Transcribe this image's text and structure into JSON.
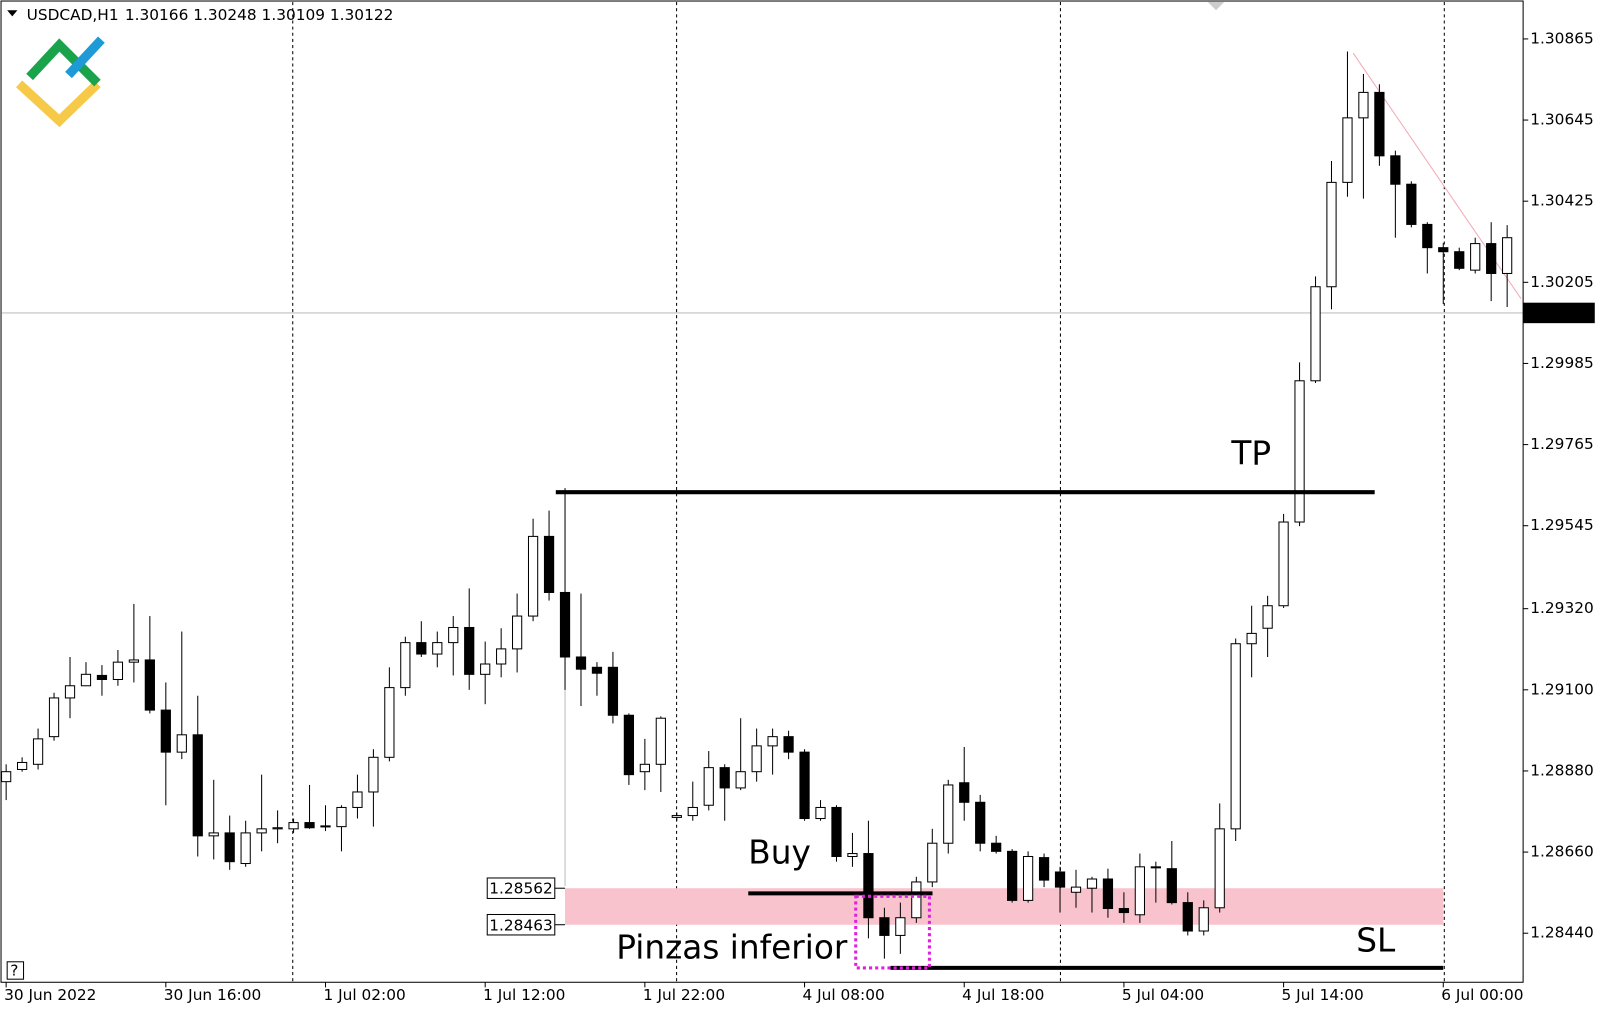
{
  "chart_data": {
    "type": "candlestick",
    "title": "USDCAD,H1",
    "quote": "1.30166 1.30248 1.30109 1.30122",
    "categories": [
      "30 Jun 2022",
      null,
      null,
      null,
      null,
      null,
      null,
      null,
      null,
      null,
      "30 Jun 16:00",
      null,
      null,
      null,
      null,
      null,
      null,
      null,
      null,
      null,
      "1 Jul 02:00",
      null,
      null,
      null,
      null,
      null,
      null,
      null,
      null,
      null,
      "1 Jul 12:00",
      null,
      null,
      null,
      null,
      null,
      null,
      null,
      null,
      null,
      "1 Jul 22:00",
      null,
      null,
      null,
      null,
      null,
      null,
      null,
      null,
      null,
      "4 Jul 08:00",
      null,
      null,
      null,
      null,
      null,
      null,
      null,
      null,
      null,
      "4 Jul 18:00",
      null,
      null,
      null,
      null,
      null,
      null,
      null,
      null,
      null,
      "5 Jul 04:00",
      null,
      null,
      null,
      null,
      null,
      null,
      null,
      null,
      null,
      "5 Jul 14:00",
      null,
      null,
      null,
      null,
      null,
      null,
      null,
      null,
      null,
      "6 Jul 00:00",
      null,
      null,
      null,
      null
    ],
    "open": [
      1.28851,
      1.28884,
      1.28898,
      1.28973,
      1.29078,
      1.29111,
      1.29139,
      1.29128,
      1.29175,
      1.29181,
      1.29045,
      1.28931,
      1.28978,
      1.28704,
      1.28712,
      1.28629,
      1.28712,
      1.28723,
      1.28723,
      1.2874,
      1.28729,
      1.28729,
      1.28781,
      1.28823,
      1.28917,
      1.29106,
      1.29228,
      1.29197,
      1.29228,
      1.29269,
      1.29142,
      1.2917,
      1.29211,
      1.293,
      1.29516,
      1.29364,
      1.29189,
      1.29161,
      1.29161,
      1.29031,
      1.28878,
      1.28898,
      1.28754,
      1.28759,
      1.28787,
      1.28889,
      1.28834,
      1.28878,
      1.28948,
      1.28973,
      1.28931,
      1.28751,
      1.28781,
      1.28648,
      1.28656,
      1.28482,
      1.28434,
      1.28482,
      1.28579,
      1.28684,
      1.28848,
      1.28795,
      1.28684,
      1.28662,
      1.28529,
      1.28645,
      1.28606,
      1.28551,
      1.28562,
      1.28587,
      1.28507,
      1.2849,
      1.2862,
      1.28615,
      1.28523,
      1.28446,
      1.28509,
      1.28723,
      1.29225,
      1.29267,
      1.29328,
      1.29555,
      1.29938,
      1.30193,
      1.30476,
      1.30651,
      1.3072,
      1.30548,
      1.30471,
      1.30362,
      1.30299,
      1.30288,
      1.30238,
      1.3031,
      1.30229
    ],
    "high": [
      1.28898,
      1.28917,
      1.28995,
      1.29092,
      1.29189,
      1.29175,
      1.29167,
      1.29208,
      1.29333,
      1.293,
      1.2912,
      1.29258,
      1.29084,
      1.28856,
      1.28759,
      1.28745,
      1.2887,
      1.28773,
      1.28751,
      1.28842,
      1.28787,
      1.28787,
      1.2887,
      1.28939,
      1.29161,
      1.29244,
      1.29286,
      1.29258,
      1.293,
      1.29375,
      1.29231,
      1.29267,
      1.29361,
      1.29564,
      1.29586,
      1.29647,
      1.29361,
      1.29175,
      1.29203,
      1.29036,
      1.28967,
      1.29028,
      1.28767,
      1.28851,
      1.28934,
      1.28898,
      1.29023,
      1.28995,
      1.28995,
      1.28989,
      1.28939,
      1.28801,
      1.28787,
      1.28712,
      1.28745,
      1.28509,
      1.28523,
      1.28593,
      1.28723,
      1.28856,
      1.28945,
      1.28815,
      1.28704,
      1.28668,
      1.28662,
      1.28656,
      1.2862,
      1.28612,
      1.28593,
      1.28615,
      1.28551,
      1.28656,
      1.28634,
      1.2869,
      1.28551,
      1.28529,
      1.28792,
      1.29239,
      1.29328,
      1.29355,
      1.29577,
      1.29988,
      1.30221,
      1.30534,
      1.30831,
      1.3077,
      1.30742,
      1.30562,
      1.30479,
      1.30368,
      1.30312,
      1.30299,
      1.30326,
      1.30368,
      1.3036
    ],
    "low": [
      1.28801,
      1.28878,
      1.28884,
      1.28962,
      1.29023,
      1.29111,
      1.29084,
      1.29111,
      1.2912,
      1.29036,
      1.28787,
      1.28912,
      1.28648,
      1.2864,
      1.28612,
      1.2862,
      1.28662,
      1.28684,
      1.28712,
      1.28723,
      1.28717,
      1.28662,
      1.28751,
      1.28729,
      1.28906,
      1.29084,
      1.29189,
      1.29161,
      1.29139,
      1.291,
      1.29061,
      1.29134,
      1.29147,
      1.29286,
      1.29342,
      1.291,
      1.29056,
      1.29084,
      1.29009,
      1.28842,
      1.28828,
      1.28823,
      1.28745,
      1.28745,
      1.28773,
      1.28745,
      1.28828,
      1.28851,
      1.2887,
      1.28912,
      1.28745,
      1.28745,
      1.28634,
      1.2862,
      1.28426,
      1.28371,
      1.28384,
      1.28468,
      1.28565,
      1.28656,
      1.28745,
      1.28662,
      1.28656,
      1.28523,
      1.28523,
      1.28565,
      1.28496,
      1.28509,
      1.28496,
      1.28482,
      1.28468,
      1.28468,
      1.28523,
      1.28518,
      1.28434,
      1.28434,
      1.28496,
      1.2869,
      1.29134,
      1.29189,
      1.29322,
      1.29544,
      1.29932,
      1.30132,
      1.30437,
      1.30432,
      1.30521,
      1.30326,
      1.30354,
      1.30229,
      1.30146,
      1.30238,
      1.30229,
      1.30154,
      1.30138
    ],
    "close": [
      1.28878,
      1.28903,
      1.28967,
      1.29078,
      1.29111,
      1.29142,
      1.29128,
      1.29175,
      1.29181,
      1.29045,
      1.28931,
      1.28978,
      1.28704,
      1.28712,
      1.28634,
      1.28712,
      1.28723,
      1.28726,
      1.2874,
      1.28726,
      1.28731,
      1.28781,
      1.28823,
      1.28917,
      1.29106,
      1.29228,
      1.29197,
      1.29228,
      1.29269,
      1.29142,
      1.2917,
      1.29211,
      1.293,
      1.29516,
      1.29364,
      1.29189,
      1.29156,
      1.29145,
      1.29031,
      1.2887,
      1.28898,
      1.29023,
      1.28759,
      1.28781,
      1.28889,
      1.28834,
      1.28878,
      1.28948,
      1.28973,
      1.28931,
      1.28751,
      1.28781,
      1.28648,
      1.28656,
      1.28482,
      1.28434,
      1.28482,
      1.28579,
      1.28684,
      1.28842,
      1.28795,
      1.28684,
      1.28662,
      1.28529,
      1.28648,
      1.28584,
      1.28565,
      1.28565,
      1.28587,
      1.28507,
      1.28496,
      1.2862,
      1.28618,
      1.28523,
      1.28446,
      1.28509,
      1.28723,
      1.29225,
      1.29253,
      1.29328,
      1.29555,
      1.29938,
      1.30193,
      1.30476,
      1.30651,
      1.3072,
      1.30548,
      1.30471,
      1.30362,
      1.30299,
      1.30288,
      1.30243,
      1.3031,
      1.30229,
      1.30326
    ],
    "up_color": "#ffffff",
    "down_color": "#000000",
    "ylim": [
      1.28307,
      1.30965
    ],
    "yticks": [
      1.30865,
      1.30645,
      1.30425,
      1.30205,
      1.29985,
      1.29765,
      1.29545,
      {
        "value": 1.2932,
        "label": "1.29320"
      },
      {
        "value": 1.291,
        "label": "1.29100"
      },
      {
        "value": 1.2888,
        "label": "1.28880"
      },
      {
        "value": 1.2866,
        "label": "1.28660"
      },
      {
        "value": 1.2844,
        "label": "1.28440"
      }
    ],
    "current_price": 1.30122,
    "zone": {
      "from": 1.28463,
      "to": 1.28562,
      "color": "#f9c3cd"
    },
    "annotations": [
      {
        "text": "TP",
        "level": 1.29636
      },
      {
        "text": "Buy",
        "level": 1.28548
      },
      {
        "text": "SL",
        "level": 1.28346
      },
      {
        "text": "Pinzas inferior",
        "color": "#e020e0"
      }
    ]
  }
}
